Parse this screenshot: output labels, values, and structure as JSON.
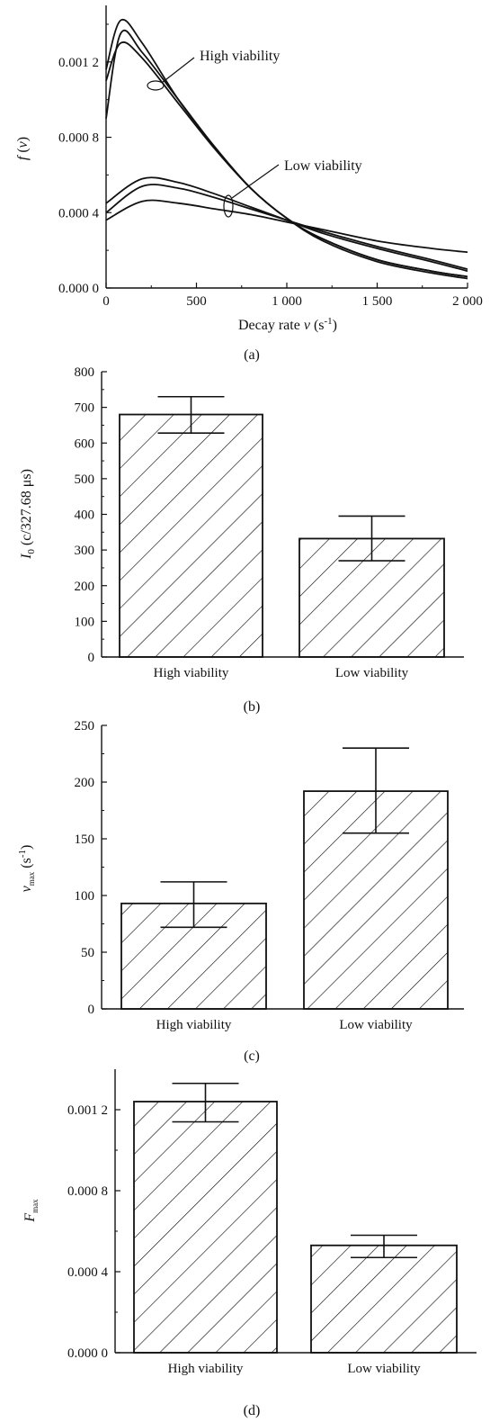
{
  "chart_data": [
    {
      "panel": "(a)",
      "type": "line",
      "xlabel": "Decay rate v (s⁻¹)",
      "ylabel": "f (v)",
      "xlim": [
        0,
        2000
      ],
      "ylim": [
        0,
        0.0015
      ],
      "x_ticks": [
        "0",
        "500",
        "1 000",
        "1 500",
        "2 000"
      ],
      "y_ticks": [
        "0.000 0",
        "0.000 4",
        "0.000 8",
        "0.001 2"
      ],
      "annotations": [
        "High viability",
        "Low viability"
      ],
      "series": [
        {
          "group": "high",
          "x": [
            0,
            80,
            200,
            400,
            600,
            800,
            1000,
            1200,
            1500,
            1800,
            2000
          ],
          "y": [
            0.0009,
            0.00135,
            0.00125,
            0.001,
            0.00075,
            0.00053,
            0.00037,
            0.00025,
            0.00014,
            8e-05,
            5e-05
          ]
        },
        {
          "group": "high",
          "x": [
            0,
            80,
            200,
            400,
            600,
            800,
            1000,
            1200,
            1500,
            1800,
            2000
          ],
          "y": [
            0.0011,
            0.0013,
            0.00122,
            0.00098,
            0.00074,
            0.00053,
            0.00037,
            0.00026,
            0.00015,
            9e-05,
            6e-05
          ]
        },
        {
          "group": "high",
          "x": [
            0,
            80,
            200,
            400,
            600,
            800,
            1000,
            1200,
            1500,
            1800,
            2000
          ],
          "y": [
            0.00116,
            0.00142,
            0.0013,
            0.001,
            0.00075,
            0.00053,
            0.00037,
            0.00026,
            0.00015,
            9e-05,
            6e-05
          ]
        },
        {
          "group": "low",
          "x": [
            0,
            200,
            400,
            600,
            800,
            1000,
            1200,
            1500,
            1800,
            2000
          ],
          "y": [
            0.00045,
            0.00058,
            0.00056,
            0.0005,
            0.00043,
            0.00036,
            0.00029,
            0.00021,
            0.00014,
            9e-05
          ]
        },
        {
          "group": "low",
          "x": [
            0,
            200,
            400,
            600,
            800,
            1000,
            1200,
            1500,
            1800,
            2000
          ],
          "y": [
            0.0004,
            0.00054,
            0.00053,
            0.00048,
            0.00042,
            0.00036,
            0.0003,
            0.00022,
            0.00015,
            0.0001
          ]
        },
        {
          "group": "low",
          "x": [
            0,
            200,
            400,
            600,
            800,
            1000,
            1200,
            1500,
            1800,
            2000
          ],
          "y": [
            0.00036,
            0.00046,
            0.00045,
            0.00042,
            0.00039,
            0.00035,
            0.00031,
            0.00025,
            0.00021,
            0.00019
          ]
        }
      ]
    },
    {
      "panel": "(b)",
      "type": "bar",
      "ylabel": "I₀ (c/327.68 μs)",
      "categories": [
        "High viability",
        "Low viability"
      ],
      "values": [
        680,
        332
      ],
      "errors": [
        [
          628,
          730
        ],
        [
          270,
          395
        ]
      ],
      "ylim": [
        0,
        800
      ],
      "y_ticks": [
        "0",
        "100",
        "200",
        "300",
        "400",
        "500",
        "600",
        "700",
        "800"
      ]
    },
    {
      "panel": "(c)",
      "type": "bar",
      "ylabel": "v max (s⁻¹)",
      "categories": [
        "High viability",
        "Low viability"
      ],
      "values": [
        93,
        192
      ],
      "errors": [
        [
          72,
          112
        ],
        [
          155,
          230
        ]
      ],
      "ylim": [
        0,
        250
      ],
      "y_ticks": [
        "0",
        "50",
        "100",
        "150",
        "200",
        "250"
      ]
    },
    {
      "panel": "(d)",
      "type": "bar",
      "ylabel": "F max",
      "categories": [
        "High viability",
        "Low viability"
      ],
      "values": [
        0.00124,
        0.00053
      ],
      "errors": [
        [
          0.00114,
          0.00133
        ],
        [
          0.00047,
          0.00058
        ]
      ],
      "ylim": [
        0,
        0.0014
      ],
      "y_ticks": [
        "0.000 0",
        "0.000 4",
        "0.000 8",
        "0.001 2"
      ]
    }
  ],
  "colors": {
    "ink": "#111111",
    "background": "#ffffff"
  }
}
